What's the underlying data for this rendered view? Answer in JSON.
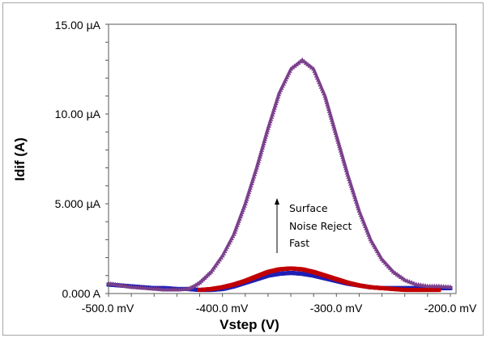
{
  "chart_data": {
    "type": "scatter",
    "title": "",
    "xlabel": "Vstep (V)",
    "ylabel": "Idif (A)",
    "xlim": [
      -500,
      -195
    ],
    "ylim": [
      0,
      15
    ],
    "x_ticks": [
      -500,
      -400,
      -300,
      -200
    ],
    "x_tick_labels": [
      "-500.0 mV",
      "-400.0 mV",
      "-300.0 mV",
      "-200.0 mV"
    ],
    "y_ticks": [
      0,
      5,
      10,
      15
    ],
    "y_tick_labels": [
      "0.000 A",
      "5.000 µA",
      "10.00 µA",
      "15.00 µA"
    ],
    "y_units": "µA",
    "x_units": "mV",
    "grid": false,
    "annotation": {
      "lines": [
        "Surface",
        "Noise Reject",
        "Fast"
      ],
      "arrow": "up"
    },
    "series": [
      {
        "color": "#1f1fb4",
        "marker": "square",
        "x": [
          -500,
          -490,
          -480,
          -470,
          -460,
          -450,
          -440,
          -430,
          -420,
          -410,
          -400,
          -390,
          -380,
          -370,
          -360,
          -350,
          -340,
          -330,
          -320,
          -310,
          -300,
          -290,
          -280,
          -270,
          -260,
          -250,
          -240,
          -230,
          -220,
          -210,
          -200
        ],
        "y": [
          0.5,
          0.45,
          0.4,
          0.35,
          0.3,
          0.3,
          0.25,
          0.25,
          0.2,
          0.2,
          0.25,
          0.4,
          0.6,
          0.8,
          1.0,
          1.1,
          1.15,
          1.1,
          1.0,
          0.85,
          0.7,
          0.55,
          0.45,
          0.35,
          0.3,
          0.3,
          0.3,
          0.3,
          0.3,
          0.3,
          0.3
        ]
      },
      {
        "color": "#c00000",
        "marker": "square",
        "x": [
          -420,
          -410,
          -400,
          -390,
          -380,
          -370,
          -360,
          -350,
          -340,
          -330,
          -320,
          -310,
          -300,
          -290,
          -280,
          -270,
          -260,
          -250,
          -240,
          -230,
          -220,
          -210
        ],
        "y": [
          0.2,
          0.25,
          0.35,
          0.5,
          0.7,
          0.95,
          1.2,
          1.35,
          1.4,
          1.35,
          1.2,
          1.0,
          0.8,
          0.6,
          0.45,
          0.35,
          0.3,
          0.25,
          0.2,
          0.2,
          0.2,
          0.2
        ]
      },
      {
        "color": "#7b3f8c",
        "marker": "triangle",
        "x": [
          -500,
          -490,
          -480,
          -470,
          -460,
          -450,
          -440,
          -430,
          -425,
          -420,
          -410,
          -400,
          -390,
          -380,
          -370,
          -360,
          -350,
          -340,
          -330,
          -320,
          -310,
          -300,
          -290,
          -280,
          -270,
          -260,
          -250,
          -240,
          -230,
          -220,
          -210,
          -200
        ],
        "y": [
          0.55,
          0.45,
          0.35,
          0.3,
          0.25,
          0.2,
          0.2,
          0.25,
          0.4,
          0.6,
          1.2,
          2.1,
          3.3,
          5.0,
          7.0,
          9.2,
          11.2,
          12.5,
          13.0,
          12.5,
          11.0,
          8.8,
          6.6,
          4.6,
          3.0,
          1.9,
          1.2,
          0.75,
          0.5,
          0.4,
          0.4,
          0.35
        ]
      }
    ]
  }
}
